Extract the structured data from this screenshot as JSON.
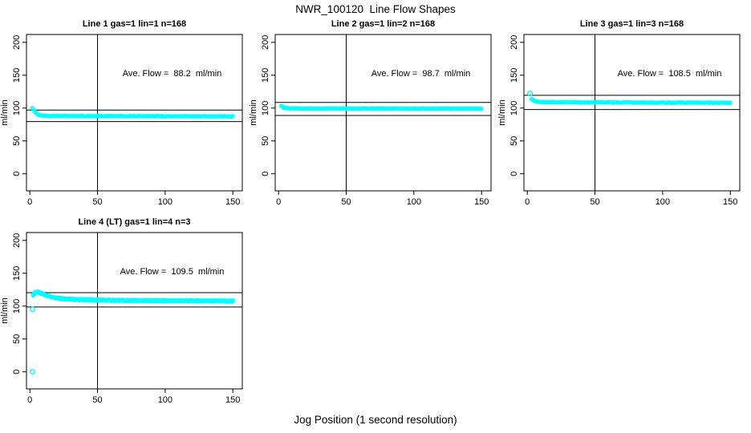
{
  "page": {
    "title": "NWR_100120  Line Flow Shapes",
    "xlabel": "Jog Position (1 second resolution)"
  },
  "colors": {
    "points": "#00ffff",
    "axis": "#000000",
    "background": "#ffffff"
  },
  "chart_data": [
    {
      "type": "scatter",
      "title": "Line 1 gas=1 lin=1 n=168",
      "annotation": "Ave. Flow =  88.2  ml/min",
      "ave_flow": 88.2,
      "n": 168,
      "ylabel": "ml/min",
      "x_ticks": [
        0,
        50,
        100,
        150
      ],
      "y_ticks": [
        0,
        50,
        100,
        150,
        200
      ],
      "xlim": [
        -2.5,
        157
      ],
      "ylim": [
        -26,
        212
      ],
      "vline_x": 50,
      "hlines": [
        97.0,
        79.4
      ],
      "x_start": 2,
      "x_end": 150,
      "points_n": 168,
      "passes": 1,
      "jitter": 0.35,
      "marker_r": 2,
      "series_profile": [
        [
          2,
          100
        ],
        [
          3,
          96.5
        ],
        [
          4,
          93.5
        ],
        [
          6,
          90
        ],
        [
          9,
          88.5
        ],
        [
          14,
          88
        ],
        [
          30,
          87.8
        ],
        [
          150,
          87.3
        ]
      ],
      "outliers": []
    },
    {
      "type": "scatter",
      "title": "Line 2 gas=1 lin=2 n=168",
      "annotation": "Ave. Flow =  98.7  ml/min",
      "ave_flow": 98.7,
      "n": 168,
      "ylabel": "ml/min",
      "x_ticks": [
        0,
        50,
        100,
        150
      ],
      "y_ticks": [
        0,
        50,
        100,
        150,
        200
      ],
      "xlim": [
        -2.5,
        157
      ],
      "ylim": [
        -26,
        212
      ],
      "vline_x": 50,
      "hlines": [
        108.6,
        88.8
      ],
      "x_start": 2,
      "x_end": 150,
      "points_n": 168,
      "passes": 1,
      "jitter": 0.4,
      "marker_r": 2,
      "series_profile": [
        [
          2,
          103.5
        ],
        [
          3,
          101.5
        ],
        [
          4,
          100.5
        ],
        [
          6,
          99.8
        ],
        [
          10,
          99.4
        ],
        [
          20,
          99.2
        ],
        [
          150,
          99.0
        ]
      ],
      "outliers": []
    },
    {
      "type": "scatter",
      "title": "Line 3 gas=1 lin=3 n=168",
      "annotation": "Ave. Flow =  108.5  ml/min",
      "ave_flow": 108.5,
      "n": 168,
      "ylabel": "ml/min",
      "x_ticks": [
        0,
        50,
        100,
        150
      ],
      "y_ticks": [
        0,
        50,
        100,
        150,
        200
      ],
      "xlim": [
        -2.5,
        157
      ],
      "ylim": [
        -26,
        212
      ],
      "vline_x": 50,
      "hlines": [
        119.4,
        97.7
      ],
      "x_start": 3,
      "x_end": 150,
      "points_n": 168,
      "passes": 1,
      "jitter": 0.4,
      "marker_r": 2,
      "series_profile": [
        [
          3,
          114
        ],
        [
          4,
          112
        ],
        [
          6,
          110.5
        ],
        [
          10,
          109.3
        ],
        [
          20,
          108.7
        ],
        [
          150,
          108.0
        ]
      ],
      "outliers": [
        [
          2,
          122
        ]
      ]
    },
    {
      "type": "scatter",
      "title": "Line 4 (LT) gas=1 lin=4 n=3",
      "annotation": "Ave. Flow =  109.5  ml/min",
      "ave_flow": 109.5,
      "n": 3,
      "ylabel": "ml/min",
      "x_ticks": [
        0,
        50,
        100,
        150
      ],
      "y_ticks": [
        0,
        50,
        100,
        150,
        200
      ],
      "xlim": [
        -2.5,
        157
      ],
      "ylim": [
        -26,
        212
      ],
      "vline_x": 50,
      "hlines": [
        120.5,
        98.6
      ],
      "x_start": 2.5,
      "x_end": 150,
      "points_n": 150,
      "passes": 3,
      "jitter": 1.0,
      "marker_r": 2,
      "series_profile": [
        [
          2.5,
          117
        ],
        [
          4,
          121
        ],
        [
          6,
          121.5
        ],
        [
          8,
          120
        ],
        [
          11,
          117
        ],
        [
          15,
          114.5
        ],
        [
          19,
          112.5
        ],
        [
          24,
          111.2
        ],
        [
          32,
          110.2
        ],
        [
          45,
          109.4
        ],
        [
          65,
          108.8
        ],
        [
          95,
          108.3
        ],
        [
          120,
          108.0
        ],
        [
          150,
          107.6
        ]
      ],
      "outliers": [
        [
          2,
          0
        ],
        [
          2,
          95
        ]
      ]
    }
  ]
}
